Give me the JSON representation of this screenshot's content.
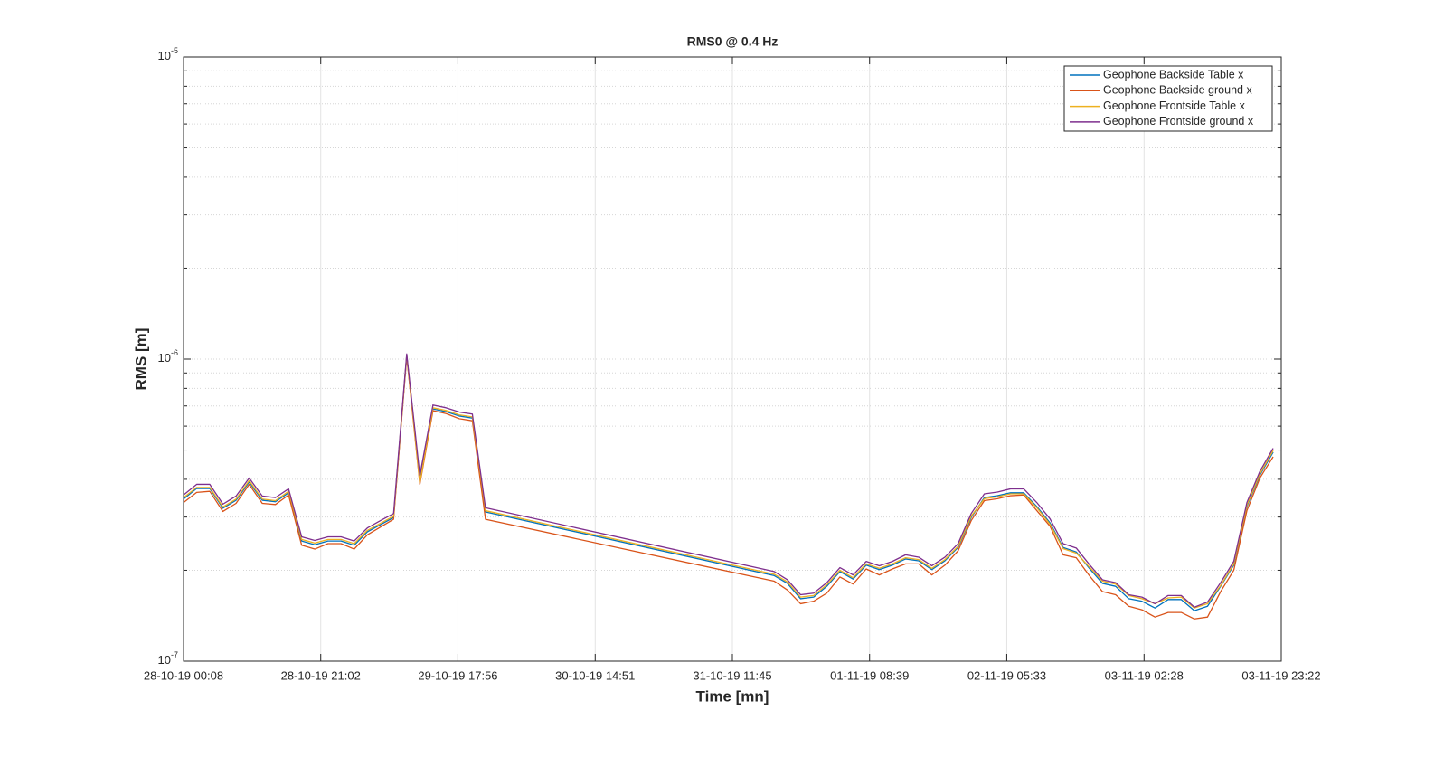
{
  "chart_data": {
    "type": "line",
    "title": "RMS0 @ 0.4 Hz",
    "xlabel": "Time [mn]",
    "ylabel": "RMS [m]",
    "ylog": true,
    "grid": true,
    "legend": "upper right",
    "xlim": [
      "28-10-19 00:08",
      "03-11-19 23:22"
    ],
    "xticks": [
      "28-10-19 00:08",
      "28-10-19 21:02",
      "29-10-19 17:56",
      "30-10-19 14:51",
      "31-10-19 11:45",
      "01-11-19 08:39",
      "02-11-19 05:33",
      "03-11-19 02:28",
      "03-11-19 23:22"
    ],
    "ylim": [
      1e-07,
      1e-05
    ],
    "yticks": [
      {
        "value": 1e-07,
        "label": "10^-7"
      },
      {
        "value": 1e-06,
        "label": "10^-6"
      },
      {
        "value": 1e-05,
        "label": "10^-5"
      }
    ],
    "yminorticks": [
      2e-07,
      3e-07,
      4e-07,
      5e-07,
      6e-07,
      7e-07,
      8e-07,
      9e-07,
      2e-06,
      3e-06,
      4e-06,
      5e-06,
      6e-06,
      7e-06,
      8e-06,
      9e-06
    ],
    "x": [
      "28-10-19 00:08",
      "28-10-19 02:08",
      "28-10-19 04:08",
      "28-10-19 06:08",
      "28-10-19 08:08",
      "28-10-19 10:08",
      "28-10-19 12:08",
      "28-10-19 14:08",
      "28-10-19 16:08",
      "28-10-19 18:08",
      "28-10-19 20:08",
      "28-10-19 22:08",
      "29-10-19 00:08",
      "29-10-19 02:08",
      "29-10-19 04:08",
      "29-10-19 06:08",
      "29-10-19 08:08",
      "29-10-19 10:08",
      "29-10-19 12:08",
      "29-10-19 14:08",
      "29-10-19 16:08",
      "29-10-19 18:08",
      "29-10-19 20:08",
      "29-10-19 22:08",
      "31-10-19 18:08",
      "31-10-19 20:08",
      "31-10-19 22:08",
      "01-11-19 00:08",
      "01-11-19 02:08",
      "01-11-19 04:08",
      "01-11-19 06:08",
      "01-11-19 08:08",
      "01-11-19 10:08",
      "01-11-19 12:08",
      "01-11-19 14:08",
      "01-11-19 16:08",
      "01-11-19 18:08",
      "01-11-19 20:08",
      "01-11-19 22:08",
      "02-11-19 00:08",
      "02-11-19 02:08",
      "02-11-19 04:08",
      "02-11-19 06:08",
      "02-11-19 08:08",
      "02-11-19 10:08",
      "02-11-19 12:08",
      "02-11-19 14:08",
      "02-11-19 16:08",
      "02-11-19 18:08",
      "02-11-19 20:08",
      "02-11-19 22:08",
      "03-11-19 00:08",
      "03-11-19 02:08",
      "03-11-19 04:08",
      "03-11-19 06:08",
      "03-11-19 08:08",
      "03-11-19 10:08",
      "03-11-19 12:08",
      "03-11-19 14:08",
      "03-11-19 16:08",
      "03-11-19 18:08",
      "03-11-19 20:08",
      "03-11-19 22:08"
    ],
    "series": [
      {
        "name": "Geophone Backside Table x",
        "color": "#0072bd",
        "values": [
          3.44e-07,
          3.73e-07,
          3.73e-07,
          3.21e-07,
          3.41e-07,
          3.92e-07,
          3.41e-07,
          3.37e-07,
          3.61e-07,
          2.5e-07,
          2.43e-07,
          2.5e-07,
          2.5e-07,
          2.42e-07,
          2.68e-07,
          2.83e-07,
          2.99e-07,
          1.03e-06,
          4e-07,
          6.84e-07,
          6.7e-07,
          6.48e-07,
          6.38e-07,
          3.12e-07,
          1.92e-07,
          1.81e-07,
          1.61e-07,
          1.63e-07,
          1.77e-07,
          1.98e-07,
          1.87e-07,
          2.08e-07,
          2.01e-07,
          2.08e-07,
          2.18e-07,
          2.15e-07,
          2.01e-07,
          2.15e-07,
          2.38e-07,
          2.99e-07,
          3.48e-07,
          3.53e-07,
          3.61e-07,
          3.61e-07,
          3.25e-07,
          2.87e-07,
          2.38e-07,
          2.3e-07,
          2.03e-07,
          1.81e-07,
          1.77e-07,
          1.61e-07,
          1.58e-07,
          1.5e-07,
          1.6e-07,
          1.6e-07,
          1.47e-07,
          1.52e-07,
          1.77e-07,
          2.08e-07,
          3.25e-07,
          4.14e-07,
          4.92e-07
        ]
      },
      {
        "name": "Geophone Backside ground x",
        "color": "#d95319",
        "values": [
          3.35e-07,
          3.62e-07,
          3.65e-07,
          3.13e-07,
          3.33e-07,
          3.85e-07,
          3.33e-07,
          3.3e-07,
          3.55e-07,
          2.42e-07,
          2.35e-07,
          2.45e-07,
          2.45e-07,
          2.35e-07,
          2.62e-07,
          2.78e-07,
          2.95e-07,
          1.02e-06,
          3.85e-07,
          6.75e-07,
          6.6e-07,
          6.35e-07,
          6.25e-07,
          2.95e-07,
          1.84e-07,
          1.72e-07,
          1.55e-07,
          1.58e-07,
          1.68e-07,
          1.9e-07,
          1.8e-07,
          2.02e-07,
          1.93e-07,
          2.02e-07,
          2.1e-07,
          2.1e-07,
          1.93e-07,
          2.08e-07,
          2.32e-07,
          2.92e-07,
          3.4e-07,
          3.45e-07,
          3.53e-07,
          3.55e-07,
          3.15e-07,
          2.8e-07,
          2.25e-07,
          2.2e-07,
          1.92e-07,
          1.7e-07,
          1.66e-07,
          1.52e-07,
          1.48e-07,
          1.4e-07,
          1.45e-07,
          1.45e-07,
          1.38e-07,
          1.4e-07,
          1.7e-07,
          2e-07,
          3.15e-07,
          4.05e-07,
          4.75e-07
        ]
      },
      {
        "name": "Geophone Frontside Table x",
        "color": "#edb120",
        "values": [
          3.48e-07,
          3.76e-07,
          3.76e-07,
          3.24e-07,
          3.44e-07,
          3.96e-07,
          3.44e-07,
          3.4e-07,
          3.65e-07,
          2.53e-07,
          2.46e-07,
          2.53e-07,
          2.53e-07,
          2.45e-07,
          2.71e-07,
          2.86e-07,
          3.02e-07,
          1.03e-06,
          3.9e-07,
          6.9e-07,
          6.76e-07,
          6.54e-07,
          6.44e-07,
          3.15e-07,
          1.94e-07,
          1.83e-07,
          1.63e-07,
          1.65e-07,
          1.79e-07,
          2e-07,
          1.89e-07,
          2.1e-07,
          2.03e-07,
          2.1e-07,
          2.2e-07,
          2.17e-07,
          2.03e-07,
          2.17e-07,
          2.4e-07,
          3.02e-07,
          3.45e-07,
          3.5e-07,
          3.58e-07,
          3.58e-07,
          3.22e-07,
          2.84e-07,
          2.36e-07,
          2.28e-07,
          2.05e-07,
          1.84e-07,
          1.8e-07,
          1.65e-07,
          1.61e-07,
          1.55e-07,
          1.62e-07,
          1.63e-07,
          1.5e-07,
          1.55e-07,
          1.78e-07,
          2.1e-07,
          3.28e-07,
          4.18e-07,
          4.98e-07
        ]
      },
      {
        "name": "Geophone Frontside ground x",
        "color": "#7e2f8e",
        "values": [
          3.55e-07,
          3.85e-07,
          3.85e-07,
          3.31e-07,
          3.52e-07,
          4.04e-07,
          3.52e-07,
          3.48e-07,
          3.72e-07,
          2.58e-07,
          2.51e-07,
          2.58e-07,
          2.58e-07,
          2.5e-07,
          2.76e-07,
          2.92e-07,
          3.08e-07,
          1.04e-06,
          4.12e-07,
          7.05e-07,
          6.9e-07,
          6.68e-07,
          6.58e-07,
          3.22e-07,
          1.98e-07,
          1.86e-07,
          1.66e-07,
          1.68e-07,
          1.82e-07,
          2.04e-07,
          1.93e-07,
          2.14e-07,
          2.07e-07,
          2.14e-07,
          2.25e-07,
          2.21e-07,
          2.07e-07,
          2.21e-07,
          2.45e-07,
          3.08e-07,
          3.58e-07,
          3.63e-07,
          3.72e-07,
          3.72e-07,
          3.35e-07,
          2.96e-07,
          2.45e-07,
          2.37e-07,
          2.09e-07,
          1.86e-07,
          1.82e-07,
          1.66e-07,
          1.63e-07,
          1.55e-07,
          1.65e-07,
          1.65e-07,
          1.51e-07,
          1.57e-07,
          1.82e-07,
          2.14e-07,
          3.35e-07,
          4.26e-07,
          5.07e-07
        ]
      }
    ]
  }
}
